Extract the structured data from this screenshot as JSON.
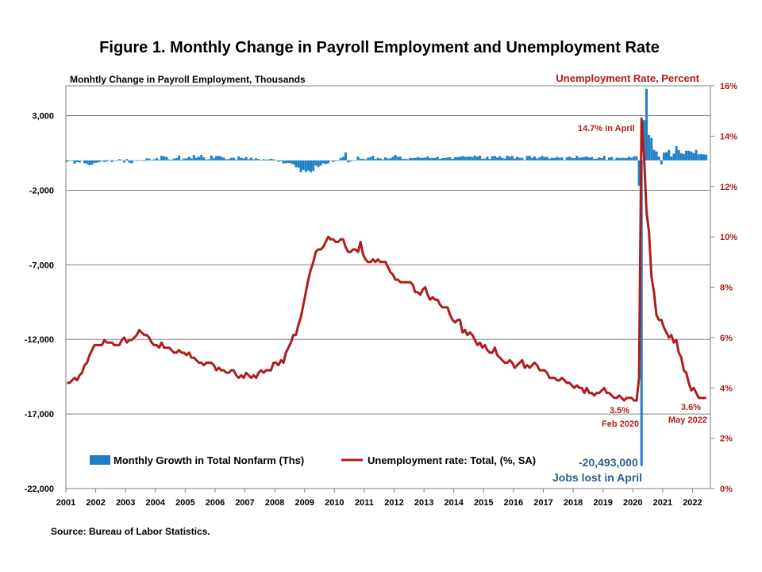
{
  "title": "Figure 1. Monthly Change in Payroll Employment and Unemployment Rate",
  "source": "Source: Bureau of Labor Statistics.",
  "colors": {
    "bars": "#1f7fc4",
    "line": "#b01c1c",
    "grid": "#808080",
    "right_axis_text": "#b01c1c",
    "jobs_annotation": "#2f5d94"
  },
  "chart_data": {
    "type": "bar+line",
    "title": "Figure 1. Monthly Change in Payroll Employment and Unemployment Rate",
    "x": {
      "start": "2001-01",
      "end": "2022-06",
      "tick_labels": [
        "2001",
        "2002",
        "2003",
        "2004",
        "2005",
        "2006",
        "2007",
        "2008",
        "2009",
        "2010",
        "2011",
        "2012",
        "2013",
        "2014",
        "2015",
        "2016",
        "2017",
        "2018",
        "2019",
        "2020",
        "2021",
        "2022"
      ]
    },
    "y_left": {
      "label": "Monhtly Change in Payroll Employment, Thousands",
      "range": [
        -22000,
        5000
      ],
      "ticks": [
        3000,
        -2000,
        -7000,
        -12000,
        -17000,
        -22000
      ],
      "tick_labels": [
        "3,000",
        "-2,000",
        "-7,000",
        "-12,000",
        "-17,000",
        "-22,000"
      ]
    },
    "y_right": {
      "label": "Unemployment Rate, Percent",
      "range": [
        0,
        16
      ],
      "ticks": [
        0,
        2,
        4,
        6,
        8,
        10,
        12,
        14,
        16
      ],
      "tick_labels": [
        "0%",
        "2%",
        "4%",
        "6%",
        "8%",
        "10%",
        "12%",
        "14%",
        "16%"
      ]
    },
    "grid": true,
    "legend": {
      "position": "bottom-left",
      "entries": [
        "Monthly Growth in Total Nonfarm (Ths)",
        "Unemployment rate: Total, (%, SA)"
      ]
    },
    "series": [
      {
        "name": "Monthly Growth in Total Nonfarm (Ths)",
        "type": "bar",
        "axis": "left",
        "description": "monthly values, Jan 2001 - Jun 2022",
        "values": [
          -100,
          -40,
          -30,
          -220,
          -110,
          -140,
          -20,
          -190,
          -240,
          -320,
          -290,
          -170,
          -150,
          -110,
          -40,
          -100,
          -80,
          20,
          -100,
          -20,
          -40,
          80,
          40,
          -140,
          90,
          -150,
          -200,
          -30,
          -10,
          -30,
          20,
          -50,
          140,
          120,
          20,
          70,
          150,
          60,
          310,
          270,
          240,
          70,
          50,
          120,
          160,
          330,
          50,
          130,
          130,
          250,
          140,
          360,
          170,
          240,
          360,
          200,
          60,
          80,
          330,
          150,
          280,
          310,
          260,
          190,
          80,
          90,
          170,
          180,
          60,
          270,
          170,
          130,
          230,
          80,
          180,
          70,
          140,
          90,
          20,
          80,
          50,
          70,
          110,
          70,
          20,
          -90,
          -50,
          -210,
          -190,
          -170,
          -210,
          -270,
          -460,
          -480,
          -800,
          -640,
          -780,
          -690,
          -800,
          -700,
          -340,
          -450,
          -350,
          -200,
          -250,
          -200,
          -10,
          -100,
          -50,
          -20,
          150,
          250,
          530,
          -130,
          -70,
          -30,
          -10,
          260,
          110,
          110,
          70,
          170,
          220,
          310,
          90,
          170,
          130,
          70,
          200,
          120,
          140,
          240,
          370,
          250,
          250,
          90,
          110,
          80,
          160,
          150,
          160,
          230,
          180,
          170,
          180,
          260,
          150,
          160,
          170,
          230,
          100,
          160,
          160,
          190,
          210,
          100,
          210,
          230,
          240,
          290,
          240,
          250,
          260,
          230,
          320,
          250,
          320,
          110,
          120,
          250,
          100,
          280,
          300,
          190,
          280,
          160,
          120,
          320,
          250,
          300,
          130,
          250,
          170,
          170,
          30,
          300,
          300,
          160,
          260,
          130,
          200,
          300,
          230,
          240,
          120,
          170,
          160,
          240,
          180,
          190,
          18,
          210,
          250,
          170,
          150,
          310,
          180,
          200,
          230,
          260,
          190,
          230,
          100,
          120,
          200,
          150,
          310,
          50,
          190,
          230,
          60,
          180,
          160,
          170,
          170,
          160,
          250,
          170,
          280,
          270,
          -1700,
          -20493,
          2700,
          4800,
          1700,
          1500,
          700,
          600,
          260,
          -270,
          520,
          540,
          700,
          260,
          450,
          960,
          690,
          480,
          420,
          650,
          650,
          590,
          500,
          700,
          400,
          420,
          400,
          380
        ]
      },
      {
        "name": "Unemployment rate: Total, (%, SA)",
        "type": "line",
        "axis": "right",
        "annual_average": {
          "2001": 4.7,
          "2002": 5.8,
          "2003": 6.0,
          "2004": 5.5,
          "2005": 5.1,
          "2006": 4.6,
          "2007": 4.6,
          "2008": 5.8,
          "2009": 9.3,
          "2010": 9.6,
          "2011": 8.9,
          "2012": 8.1,
          "2013": 7.4,
          "2014": 6.2,
          "2015": 5.3,
          "2016": 4.9,
          "2017": 4.4,
          "2018": 3.9,
          "2019": 3.7,
          "2020": 8.1,
          "2021": 5.4,
          "2022": 3.6
        },
        "values": [
          4.2,
          4.2,
          4.3,
          4.4,
          4.3,
          4.5,
          4.6,
          4.9,
          5.0,
          5.3,
          5.5,
          5.7,
          5.7,
          5.7,
          5.7,
          5.9,
          5.8,
          5.8,
          5.8,
          5.7,
          5.7,
          5.7,
          5.9,
          6.0,
          5.8,
          5.9,
          5.9,
          6.0,
          6.1,
          6.3,
          6.2,
          6.1,
          6.1,
          6.0,
          5.8,
          5.7,
          5.7,
          5.6,
          5.8,
          5.6,
          5.6,
          5.6,
          5.5,
          5.4,
          5.4,
          5.5,
          5.4,
          5.4,
          5.3,
          5.4,
          5.2,
          5.2,
          5.1,
          5.0,
          5.0,
          4.9,
          5.0,
          5.0,
          5.0,
          4.9,
          4.7,
          4.8,
          4.7,
          4.7,
          4.6,
          4.6,
          4.7,
          4.7,
          4.5,
          4.4,
          4.5,
          4.4,
          4.6,
          4.5,
          4.4,
          4.5,
          4.4,
          4.6,
          4.7,
          4.6,
          4.7,
          4.7,
          4.7,
          5.0,
          5.0,
          4.9,
          5.1,
          5.0,
          5.4,
          5.6,
          5.8,
          6.1,
          6.1,
          6.5,
          6.8,
          7.3,
          7.8,
          8.3,
          8.7,
          9.0,
          9.4,
          9.5,
          9.5,
          9.6,
          9.8,
          10.0,
          9.9,
          9.9,
          9.8,
          9.8,
          9.9,
          9.9,
          9.6,
          9.4,
          9.4,
          9.5,
          9.5,
          9.4,
          9.8,
          9.3,
          9.1,
          9.0,
          9.0,
          9.1,
          9.0,
          9.1,
          9.0,
          9.0,
          9.0,
          8.8,
          8.6,
          8.5,
          8.3,
          8.3,
          8.2,
          8.2,
          8.2,
          8.2,
          8.2,
          8.1,
          7.8,
          7.8,
          7.7,
          7.9,
          8.0,
          7.7,
          7.5,
          7.6,
          7.5,
          7.5,
          7.3,
          7.2,
          7.2,
          7.2,
          6.9,
          6.7,
          6.6,
          6.7,
          6.7,
          6.2,
          6.3,
          6.1,
          6.2,
          6.1,
          5.9,
          5.7,
          5.8,
          5.6,
          5.7,
          5.5,
          5.4,
          5.4,
          5.6,
          5.3,
          5.2,
          5.1,
          5.0,
          5.0,
          5.1,
          5.0,
          4.8,
          4.9,
          5.0,
          5.1,
          4.8,
          4.9,
          4.8,
          4.9,
          5.0,
          4.9,
          4.7,
          4.7,
          4.7,
          4.6,
          4.4,
          4.4,
          4.4,
          4.3,
          4.3,
          4.4,
          4.3,
          4.2,
          4.2,
          4.1,
          4.0,
          4.1,
          4.0,
          4.0,
          3.8,
          4.0,
          3.8,
          3.8,
          3.7,
          3.8,
          3.8,
          3.9,
          4.0,
          3.8,
          3.8,
          3.7,
          3.6,
          3.6,
          3.7,
          3.6,
          3.5,
          3.6,
          3.6,
          3.6,
          3.5,
          3.5,
          4.4,
          14.7,
          13.2,
          11.0,
          10.2,
          8.4,
          7.8,
          6.9,
          6.7,
          6.7,
          6.4,
          6.2,
          6.0,
          6.1,
          5.8,
          5.9,
          5.4,
          5.2,
          4.7,
          4.6,
          4.2,
          3.9,
          4.0,
          3.8,
          3.6,
          3.6,
          3.6,
          3.6
        ]
      }
    ],
    "annotations": [
      {
        "text": "14.7% in April",
        "series": "Unemployment rate: Total, (%, SA)",
        "x": "2020-04",
        "y": 14.7
      },
      {
        "text": "3.5%",
        "series": "Unemployment rate: Total, (%, SA)",
        "x": "2020-02",
        "y": 3.5
      },
      {
        "text": "Feb 2020",
        "series": "Unemployment rate: Total, (%, SA)",
        "x": "2020-02",
        "y": 3.5
      },
      {
        "text": "3.6%",
        "series": "Unemployment rate: Total, (%, SA)",
        "x": "2022-05",
        "y": 3.6
      },
      {
        "text": "May 2022",
        "series": "Unemployment rate: Total, (%, SA)",
        "x": "2022-05",
        "y": 3.6
      },
      {
        "text": "-20,493,000",
        "series": "Monthly Growth in Total Nonfarm (Ths)",
        "x": "2020-04",
        "y": -20493
      },
      {
        "text": "Jobs lost in April",
        "series": "Monthly Growth in Total Nonfarm (Ths)",
        "x": "2020-04",
        "y": -20493
      }
    ]
  }
}
